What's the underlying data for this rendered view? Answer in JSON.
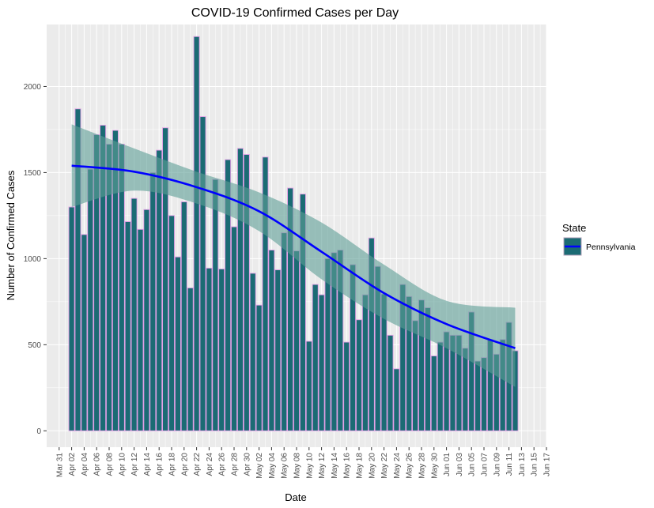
{
  "chart_data": {
    "type": "bar",
    "title": "COVID-19 Confirmed Cases per Day",
    "xlabel": "Date",
    "ylabel": "Number of Confirmed Cases",
    "start_date": "2020-04-02",
    "values": [
      1300,
      1870,
      1140,
      1520,
      1720,
      1775,
      1665,
      1745,
      1665,
      1215,
      1350,
      1170,
      1285,
      1500,
      1630,
      1760,
      1250,
      1010,
      1330,
      830,
      2290,
      1825,
      945,
      1460,
      940,
      1575,
      1185,
      1640,
      1605,
      915,
      730,
      1590,
      1050,
      935,
      1150,
      1410,
      1045,
      1375,
      520,
      850,
      790,
      1000,
      1035,
      1050,
      515,
      965,
      645,
      790,
      1120,
      955,
      795,
      555,
      360,
      850,
      780,
      640,
      760,
      715,
      435,
      515,
      575,
      555,
      555,
      480,
      690,
      405,
      425,
      530,
      445,
      530,
      630,
      465
    ],
    "trend_line": {
      "x": [
        "2020-04-02",
        "2020-04-12",
        "2020-04-22",
        "2020-05-02",
        "2020-05-12",
        "2020-05-22",
        "2020-06-01",
        "2020-06-12"
      ],
      "y": [
        1540,
        1505,
        1415,
        1275,
        1040,
        800,
        620,
        480
      ],
      "ci_upper": [
        1780,
        1640,
        1505,
        1385,
        1210,
        965,
        755,
        715
      ],
      "ci_lower": [
        1300,
        1395,
        1320,
        1160,
        880,
        650,
        480,
        255
      ]
    },
    "x_ticks": [
      "Mar 31",
      "Apr 02",
      "Apr 04",
      "Apr 06",
      "Apr 08",
      "Apr 10",
      "Apr 12",
      "Apr 14",
      "Apr 16",
      "Apr 18",
      "Apr 20",
      "Apr 22",
      "Apr 24",
      "Apr 26",
      "Apr 28",
      "Apr 30",
      "May 02",
      "May 04",
      "May 06",
      "May 08",
      "May 10",
      "May 12",
      "May 14",
      "May 16",
      "May 18",
      "May 20",
      "May 22",
      "May 24",
      "May 26",
      "May 28",
      "May 30",
      "Jun 01",
      "Jun 03",
      "Jun 05",
      "Jun 07",
      "Jun 09",
      "Jun 11",
      "Jun 13",
      "Jun 15",
      "Jun 17"
    ],
    "y_ticks": [
      0,
      500,
      1000,
      1500,
      2000
    ],
    "ylim": [
      -95,
      2360
    ],
    "xlim": [
      "2020-03-29",
      "2020-06-17"
    ],
    "legend": {
      "title": "State",
      "entries": [
        "Pennsylvania"
      ],
      "position": "right"
    },
    "colors": {
      "bar_fill": "#1b6b74",
      "bar_outline": "#e29fe6",
      "trend_line": "#0000ff",
      "ci_band": "#5d9e96",
      "panel_bg": "#ebebeb",
      "grid": "#ffffff"
    },
    "grid": true
  }
}
